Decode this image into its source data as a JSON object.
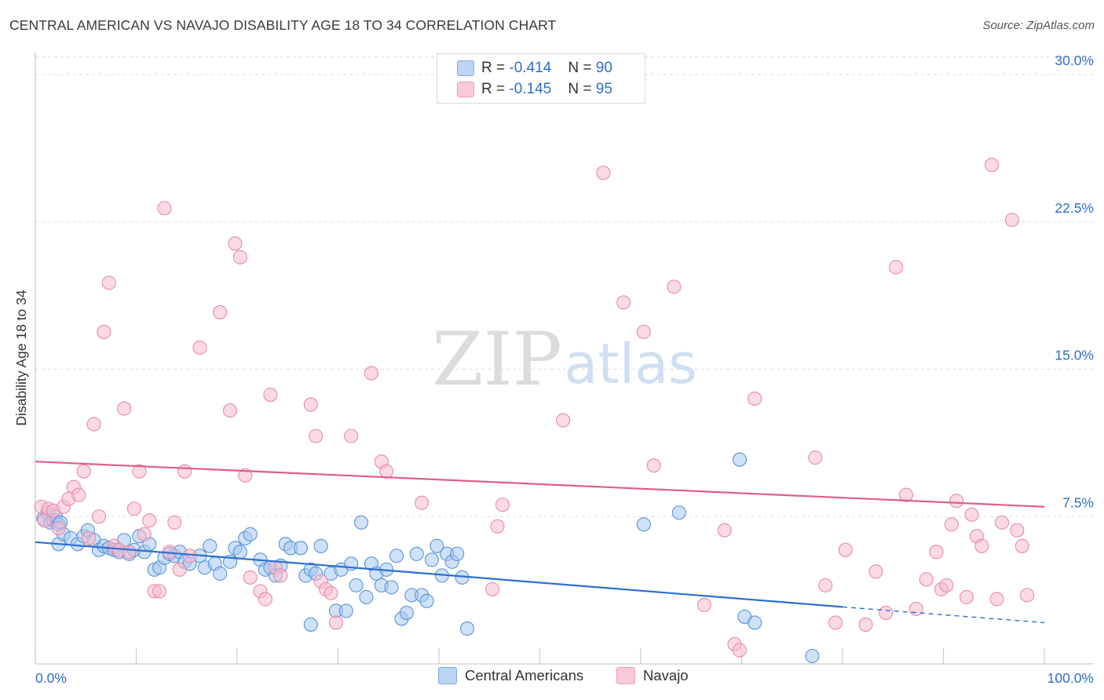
{
  "header": {
    "title": "CENTRAL AMERICAN VS NAVAJO DISABILITY AGE 18 TO 34 CORRELATION CHART",
    "source": "Source: ZipAtlas.com"
  },
  "watermark": {
    "zip": "ZIP",
    "atlas": "atlas"
  },
  "legend_top": {
    "rows": [
      {
        "r_label": "R = ",
        "r_value": "-0.414",
        "n_label": "N = ",
        "n_value": "90"
      },
      {
        "r_label": "R = ",
        "r_value": "-0.145",
        "n_label": "N = ",
        "n_value": "95"
      }
    ]
  },
  "legend_bottom": {
    "items": [
      "Central Americans",
      "Navajo"
    ]
  },
  "chart_data": {
    "type": "scatter",
    "title": "CENTRAL AMERICAN VS NAVAJO DISABILITY AGE 18 TO 34 CORRELATION CHART",
    "xlabel": "",
    "ylabel": "Disability Age 18 to 34",
    "xlim": [
      0,
      100
    ],
    "ylim": [
      0,
      31
    ],
    "x_tick_labels": [
      "0.0%",
      "100.0%"
    ],
    "y_ticks": [
      7.5,
      15.0,
      22.5,
      30.0
    ],
    "y_tick_labels": [
      "7.5%",
      "15.0%",
      "22.5%",
      "30.0%"
    ],
    "grid": true,
    "legend_position": "top-center",
    "colors": {
      "central_fill": "#a8c8f0",
      "central_stroke": "#5b93d8",
      "central_line": "#2c6fd1",
      "navajo_fill": "#f7bcd0",
      "navajo_stroke": "#e88aa8",
      "navajo_line": "#e05e8c",
      "grid": "#dddddd",
      "axis": "#cccccc",
      "tick_label": "#2f6ec7"
    },
    "series": [
      {
        "name": "Central Americans",
        "r": -0.414,
        "n": 90,
        "trend": {
          "x0": 0,
          "y0": 6.2,
          "x1": 80,
          "y1": 2.9,
          "dash_to_x": 100,
          "dash_to_y": 2.1
        },
        "points": [
          [
            0.8,
            7.4
          ],
          [
            1.2,
            7.7
          ],
          [
            1.5,
            7.2
          ],
          [
            2.0,
            7.5
          ],
          [
            1.8,
            7.3
          ],
          [
            2.3,
            7.1
          ],
          [
            2.5,
            7.2
          ],
          [
            2.3,
            6.1
          ],
          [
            2.8,
            6.6
          ],
          [
            3.5,
            6.4
          ],
          [
            4.2,
            6.1
          ],
          [
            4.8,
            6.5
          ],
          [
            5.2,
            6.8
          ],
          [
            5.8,
            6.3
          ],
          [
            6.3,
            5.8
          ],
          [
            6.8,
            6.0
          ],
          [
            7.3,
            5.9
          ],
          [
            7.8,
            5.8
          ],
          [
            8.3,
            5.7
          ],
          [
            8.8,
            6.3
          ],
          [
            9.3,
            5.6
          ],
          [
            9.8,
            5.8
          ],
          [
            10.3,
            6.5
          ],
          [
            10.8,
            5.7
          ],
          [
            11.3,
            6.1
          ],
          [
            11.8,
            4.8
          ],
          [
            12.3,
            4.9
          ],
          [
            12.8,
            5.4
          ],
          [
            13.3,
            5.6
          ],
          [
            13.8,
            5.5
          ],
          [
            14.3,
            5.7
          ],
          [
            14.8,
            5.2
          ],
          [
            15.3,
            5.1
          ],
          [
            16.3,
            5.5
          ],
          [
            16.8,
            4.9
          ],
          [
            17.3,
            6.0
          ],
          [
            17.8,
            5.1
          ],
          [
            18.3,
            4.6
          ],
          [
            19.3,
            5.2
          ],
          [
            19.8,
            5.9
          ],
          [
            20.3,
            5.7
          ],
          [
            20.8,
            6.4
          ],
          [
            21.3,
            6.6
          ],
          [
            22.3,
            5.3
          ],
          [
            22.8,
            4.8
          ],
          [
            23.3,
            4.9
          ],
          [
            23.8,
            4.5
          ],
          [
            24.3,
            5.0
          ],
          [
            24.8,
            6.1
          ],
          [
            25.3,
            5.9
          ],
          [
            26.3,
            5.9
          ],
          [
            26.8,
            4.5
          ],
          [
            27.3,
            4.8
          ],
          [
            27.8,
            4.6
          ],
          [
            28.3,
            6.0
          ],
          [
            29.3,
            4.6
          ],
          [
            29.8,
            2.7
          ],
          [
            30.3,
            4.8
          ],
          [
            30.8,
            2.7
          ],
          [
            31.3,
            5.1
          ],
          [
            31.8,
            4.0
          ],
          [
            32.3,
            7.2
          ],
          [
            32.8,
            3.4
          ],
          [
            33.3,
            5.1
          ],
          [
            33.8,
            4.6
          ],
          [
            34.3,
            4.0
          ],
          [
            34.8,
            4.8
          ],
          [
            35.3,
            3.9
          ],
          [
            35.8,
            5.5
          ],
          [
            36.3,
            2.3
          ],
          [
            36.8,
            2.6
          ],
          [
            37.3,
            3.5
          ],
          [
            37.8,
            5.6
          ],
          [
            38.3,
            3.5
          ],
          [
            38.8,
            3.2
          ],
          [
            39.3,
            5.3
          ],
          [
            39.8,
            6.0
          ],
          [
            40.3,
            4.5
          ],
          [
            40.8,
            5.6
          ],
          [
            41.3,
            5.2
          ],
          [
            41.8,
            5.6
          ],
          [
            42.3,
            4.4
          ],
          [
            42.8,
            1.8
          ],
          [
            27.3,
            2.0
          ],
          [
            63.8,
            7.7
          ],
          [
            69.8,
            10.4
          ],
          [
            70.3,
            2.4
          ],
          [
            71.3,
            2.1
          ],
          [
            60.3,
            7.1
          ],
          [
            77.0,
            0.4
          ]
        ]
      },
      {
        "name": "Navajo",
        "r": -0.145,
        "n": 95,
        "trend": {
          "x0": 0,
          "y0": 10.3,
          "x1": 100,
          "y1": 8.0
        },
        "points": [
          [
            0.6,
            8.0
          ],
          [
            0.9,
            7.3
          ],
          [
            1.3,
            7.9
          ],
          [
            1.8,
            7.8
          ],
          [
            2.3,
            6.9
          ],
          [
            2.8,
            8.0
          ],
          [
            3.3,
            8.4
          ],
          [
            3.8,
            9.0
          ],
          [
            4.3,
            8.6
          ],
          [
            4.8,
            9.8
          ],
          [
            5.3,
            6.4
          ],
          [
            5.8,
            12.2
          ],
          [
            6.3,
            7.5
          ],
          [
            6.8,
            16.9
          ],
          [
            7.3,
            19.4
          ],
          [
            7.8,
            6.0
          ],
          [
            8.3,
            5.8
          ],
          [
            8.8,
            13.0
          ],
          [
            9.3,
            5.7
          ],
          [
            9.8,
            7.9
          ],
          [
            10.3,
            9.8
          ],
          [
            10.8,
            6.6
          ],
          [
            11.3,
            7.3
          ],
          [
            11.8,
            3.7
          ],
          [
            12.3,
            3.7
          ],
          [
            12.8,
            23.2
          ],
          [
            13.3,
            5.7
          ],
          [
            13.8,
            7.2
          ],
          [
            14.3,
            4.8
          ],
          [
            14.8,
            9.8
          ],
          [
            15.3,
            5.5
          ],
          [
            16.3,
            16.1
          ],
          [
            18.3,
            17.9
          ],
          [
            19.3,
            12.9
          ],
          [
            19.8,
            21.4
          ],
          [
            20.3,
            20.7
          ],
          [
            20.8,
            9.6
          ],
          [
            21.3,
            4.4
          ],
          [
            22.3,
            3.7
          ],
          [
            22.8,
            3.3
          ],
          [
            23.3,
            13.7
          ],
          [
            23.8,
            4.9
          ],
          [
            24.3,
            4.5
          ],
          [
            27.3,
            13.2
          ],
          [
            27.8,
            11.6
          ],
          [
            28.3,
            4.2
          ],
          [
            28.8,
            3.8
          ],
          [
            29.3,
            3.6
          ],
          [
            29.8,
            2.1
          ],
          [
            31.3,
            11.6
          ],
          [
            33.3,
            14.8
          ],
          [
            34.3,
            10.3
          ],
          [
            34.8,
            9.8
          ],
          [
            38.3,
            8.2
          ],
          [
            45.3,
            3.8
          ],
          [
            45.8,
            7.0
          ],
          [
            46.3,
            8.1
          ],
          [
            52.3,
            12.4
          ],
          [
            56.3,
            25.0
          ],
          [
            58.3,
            18.4
          ],
          [
            60.3,
            16.9
          ],
          [
            61.3,
            10.1
          ],
          [
            63.3,
            19.2
          ],
          [
            66.3,
            3.0
          ],
          [
            68.3,
            6.8
          ],
          [
            69.3,
            1.0
          ],
          [
            69.8,
            0.7
          ],
          [
            71.3,
            13.5
          ],
          [
            77.3,
            10.5
          ],
          [
            78.3,
            4.0
          ],
          [
            79.3,
            2.1
          ],
          [
            80.3,
            5.8
          ],
          [
            82.3,
            2.0
          ],
          [
            83.3,
            4.7
          ],
          [
            84.3,
            2.6
          ],
          [
            85.3,
            20.2
          ],
          [
            86.3,
            8.6
          ],
          [
            87.3,
            2.8
          ],
          [
            88.3,
            4.3
          ],
          [
            89.3,
            5.7
          ],
          [
            89.8,
            3.8
          ],
          [
            90.3,
            4.0
          ],
          [
            90.8,
            7.1
          ],
          [
            91.3,
            8.3
          ],
          [
            92.3,
            3.4
          ],
          [
            92.8,
            7.6
          ],
          [
            93.3,
            6.5
          ],
          [
            93.8,
            6.0
          ],
          [
            94.8,
            25.4
          ],
          [
            95.3,
            3.3
          ],
          [
            95.8,
            7.2
          ],
          [
            96.8,
            22.6
          ],
          [
            97.3,
            6.8
          ],
          [
            97.8,
            6.0
          ],
          [
            98.3,
            3.5
          ]
        ]
      }
    ]
  }
}
